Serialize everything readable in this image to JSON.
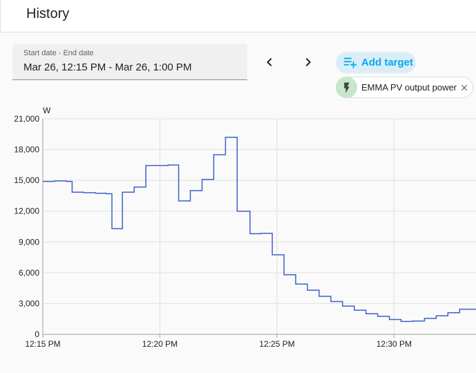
{
  "header": {
    "title": "History"
  },
  "date_picker": {
    "label": "Start date - End date",
    "value": "Mar 26, 12:15 PM - Mar 26, 1:00 PM"
  },
  "nav": {
    "prev_icon": "chevron-left-icon",
    "next_icon": "chevron-right-icon"
  },
  "add_target": {
    "label": "Add target",
    "icon": "playlist-plus-icon",
    "color": "#03a9f4",
    "background": "#dbeef8"
  },
  "target_chip": {
    "label": "EMMA PV output power",
    "icon": "flash-icon",
    "icon_background": "#c8e6c9",
    "remove_icon": "close-icon"
  },
  "chart_data": {
    "type": "line",
    "step": true,
    "unit_label": "W",
    "line_color": "#3b62c9",
    "grid": true,
    "ylim": [
      0,
      21000
    ],
    "y_ticks": [
      "0",
      "3,000",
      "6,000",
      "9,000",
      "12,000",
      "15,000",
      "18,000",
      "21,000"
    ],
    "y_tick_values": [
      0,
      3000,
      6000,
      9000,
      12000,
      15000,
      18000,
      21000
    ],
    "xlim_minutes_after_noon": [
      15,
      33.5
    ],
    "x_ticks": [
      "12:15 PM",
      "12:20 PM",
      "12:25 PM",
      "12:30 PM"
    ],
    "x_tick_values_minutes_after_noon": [
      15,
      20,
      25,
      30
    ],
    "series": [
      {
        "x_minutes_after_noon": [
          15.0,
          15.5,
          16.0,
          16.25,
          16.75,
          17.25,
          17.7,
          17.95,
          18.4,
          18.9,
          19.4,
          20.35,
          20.8,
          21.3,
          21.8,
          22.3,
          22.8,
          23.3,
          23.85,
          24.3,
          24.8,
          25.3,
          25.8,
          26.3,
          26.8,
          27.3,
          27.8,
          28.3,
          28.8,
          29.3,
          29.8,
          30.3,
          30.8,
          31.3,
          31.8,
          32.3,
          32.8,
          33.5
        ],
        "values": [
          14900,
          14950,
          14900,
          13850,
          13800,
          13750,
          13700,
          10300,
          13850,
          14350,
          16450,
          16500,
          13000,
          14000,
          15100,
          17500,
          19200,
          12000,
          9800,
          9850,
          7750,
          5800,
          4900,
          4300,
          3700,
          3200,
          2750,
          2350,
          2000,
          1750,
          1450,
          1250,
          1300,
          1550,
          1800,
          2100,
          2450,
          2450
        ]
      }
    ]
  }
}
